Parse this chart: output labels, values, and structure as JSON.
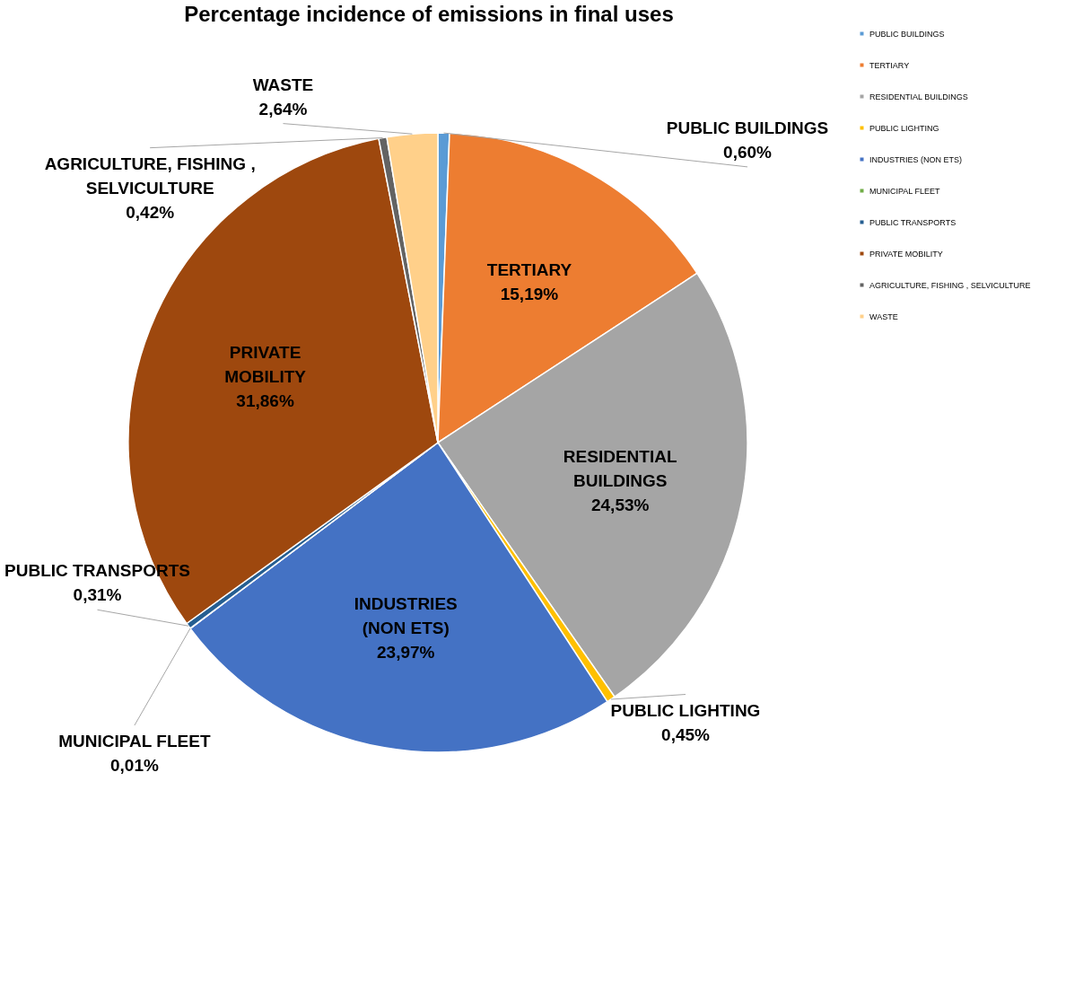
{
  "chart_data": {
    "type": "pie",
    "title": "Percentage incidence of emissions in final uses",
    "categories": [
      "PUBLIC BUILDINGS",
      "TERTIARY",
      "RESIDENTIAL BUILDINGS",
      "PUBLIC LIGHTING",
      "INDUSTRIES (NON ETS)",
      "MUNICIPAL FLEET",
      "PUBLIC TRANSPORTS",
      "PRIVATE MOBILITY",
      "AGRICULTURE, FISHING , SELVICULTURE",
      "WASTE"
    ],
    "values": [
      0.6,
      15.19,
      24.53,
      0.45,
      23.97,
      0.01,
      0.31,
      31.86,
      0.42,
      2.64
    ],
    "value_labels": [
      "0,60%",
      "15,19%",
      "24,53%",
      "0,45%",
      "23,97%",
      "0,01%",
      "0,31%",
      "31,86%",
      "0,42%",
      "2,64%"
    ],
    "colors": [
      "#5b9bd5",
      "#ed7d31",
      "#a5a5a5",
      "#ffc000",
      "#4472c4",
      "#70ad47",
      "#255e91",
      "#9e480e",
      "#636363",
      "#ffd08a"
    ],
    "legend": "right"
  }
}
